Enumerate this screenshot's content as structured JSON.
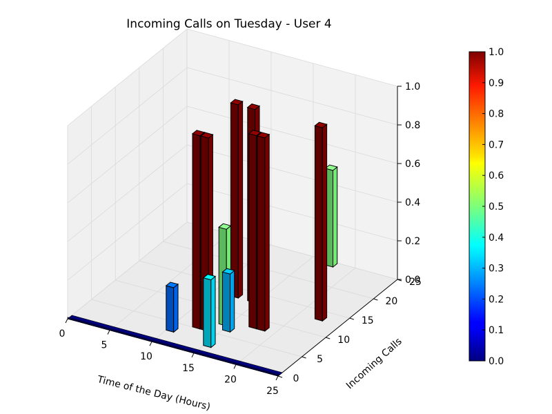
{
  "chart_data": {
    "type": "bar3d",
    "title": "Incoming Calls on Tuesday - User 4",
    "xlabel": "Time of the Day (Hours)",
    "ylabel": "Incoming Calls",
    "zlabel": "",
    "xlim": [
      0,
      25
    ],
    "ylim": [
      0,
      25
    ],
    "zlim": [
      0,
      1
    ],
    "xticks": [
      "0",
      "5",
      "10",
      "15",
      "20",
      "25"
    ],
    "yticks": [
      "0",
      "5",
      "10",
      "15",
      "20",
      "25"
    ],
    "zticks": [
      "0.0",
      "0.2",
      "0.4",
      "0.6",
      "0.8",
      "1.0"
    ],
    "grid": true,
    "colorbar": {
      "colormap": "jet",
      "range": [
        0,
        1
      ],
      "ticks": [
        "0.0",
        "0.1",
        "0.2",
        "0.3",
        "0.4",
        "0.5",
        "0.6",
        "0.7",
        "0.8",
        "0.9",
        "1.0"
      ]
    },
    "bars": [
      {
        "x": 10,
        "y": 3,
        "value": 0.23
      },
      {
        "x": 12,
        "y": 13,
        "value": 1.0
      },
      {
        "x": 12,
        "y": 5,
        "value": 1.0
      },
      {
        "x": 13,
        "y": 5,
        "value": 1.0
      },
      {
        "x": 14,
        "y": 13,
        "value": 1.0
      },
      {
        "x": 14,
        "y": 7,
        "value": 0.5
      },
      {
        "x": 15,
        "y": 2,
        "value": 0.35
      },
      {
        "x": 15,
        "y": 6,
        "value": 0.3
      },
      {
        "x": 17,
        "y": 8,
        "value": 1.0
      },
      {
        "x": 18,
        "y": 8,
        "value": 1.0
      },
      {
        "x": 17,
        "y": 24,
        "value": 0.5
      },
      {
        "x": 22,
        "y": 13,
        "value": 1.0
      }
    ]
  }
}
